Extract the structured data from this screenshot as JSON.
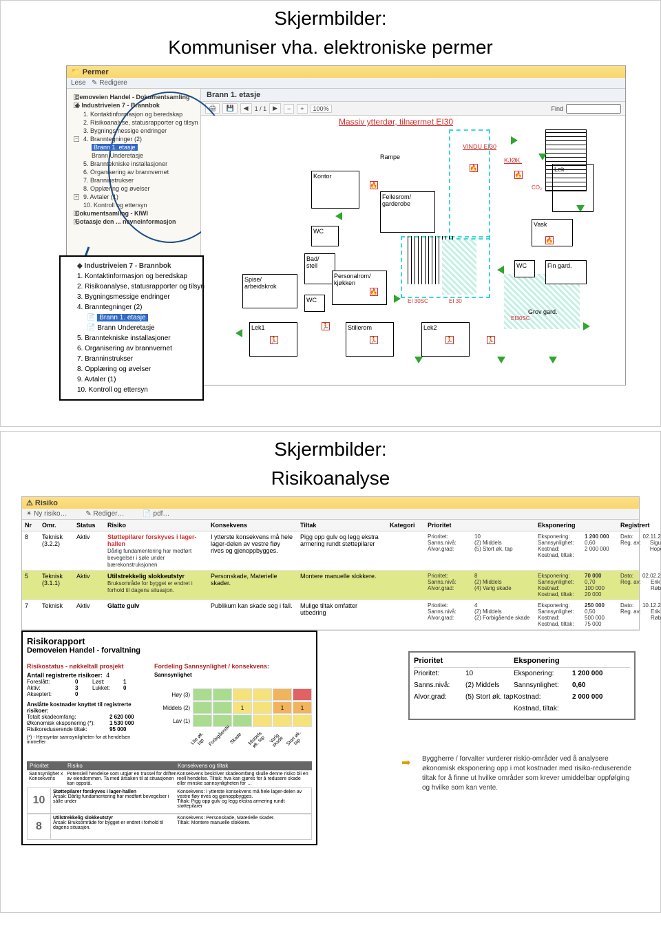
{
  "slide1": {
    "title_line1": "Skjermbilder:",
    "title_line2": "Kommuniser vha. elektroniske permer",
    "window_title": "Permer",
    "toolbar_items": [
      "Lese",
      "Redigere"
    ],
    "tree": {
      "root_a": "Demoveien Handel - Dokumentsamling",
      "root_b": "Industriveien 7 - Brannbok",
      "items": [
        "1. Kontaktinformasjon og beredskap",
        "2. Risikoanalyse, statusrapporter og tilsyn",
        "3. Bygningsmessige endringer",
        "4. Branntegninger (2)",
        "Brann 1. etasje",
        "Brann Underetasje",
        "5. Branntekniske installasjoner",
        "6. Organisering av brannvernet",
        "7. Branninstrukser",
        "8. Opplæring og øvelser",
        "9. Avtaler (1)",
        "10. Kontroll og ettersyn"
      ],
      "extra_line_a": "Dokumentsamling - KIWI",
      "extra_line_b": "Gotaasje den ... nevneinformasjon"
    },
    "doc_title": "Brann 1. etasje",
    "page_indicator": "1 / 1",
    "zoom": "100%",
    "find_label": "Find",
    "floorplan": {
      "banner": "Massiv ytterdør, tilnærmet EI30",
      "vindu": "VINDU  EI30",
      "rooms": {
        "rampe": "Rampe",
        "kontor": "Kontor",
        "wc1": "WC",
        "felles": "Fellesrom/\ngarderobe",
        "kjok": "KJØK.",
        "lek": "Lek",
        "vask": "Vask",
        "bad": "Bad/\nstell",
        "spise": "Spise/\narbeidskrok",
        "pers": "Personalrom/\nkjøkken",
        "wc2": "WC",
        "wc3": "WC",
        "fingard": "Fin gard.",
        "grov": "Grov gard.",
        "lek1": "Lek1",
        "stille": "Stillerom",
        "lek2": "Lek2",
        "ei30_a": "EI 30",
        "ei30_b": "EI 30SC",
        "ei30_c": "EI30SC",
        "co2": "CO₂"
      }
    }
  },
  "slide2": {
    "title_line1": "Skjermbilder:",
    "title_line2": "Risikoanalyse",
    "window_title": "Risiko",
    "toolbar": {
      "ny": "Ny risiko…",
      "rediger": "Rediger…",
      "pdf": "pdf…"
    },
    "columns": [
      "Nr",
      "Omr.",
      "Status",
      "Risiko",
      "Konsekvens",
      "Tiltak",
      "Kategori",
      "Prioritet",
      "Eksponering",
      "Registrert"
    ],
    "rows": [
      {
        "nr": "8",
        "omr": "Teknisk\n(3.2.2)",
        "status": "Aktiv",
        "risiko": "Støttepilarer forskyves i lager-hallen",
        "risiko_detail": "Dårlig fundamentering har medført bevegelser i søle under bærekonstruksjonen",
        "konsekvens": "I ytterste konsekvens må hele lager-delen av vestre fløy rives og gjenoppbygges.",
        "tiltak": "Pigg opp gulv og legg ekstra armering rundt støttepilarer",
        "prio": [
          [
            "Prioritet:",
            "10"
          ],
          [
            "Sanns.nivå:",
            "(2) Middels"
          ],
          [
            "Alvor.grad:",
            "(5) Stort øk. tap"
          ]
        ],
        "eksp": [
          [
            "Eksponering:",
            "1 200 000"
          ],
          [
            "Sannsynlighet:",
            "0,60"
          ],
          [
            "Kostnad:",
            "2 000 000"
          ],
          [
            "Kostnad, tiltak:",
            ""
          ]
        ],
        "reg": [
          [
            "Dato:",
            "02.11.2009"
          ],
          [
            "Reg. av:",
            "Sigurd Hopen"
          ]
        ]
      },
      {
        "nr": "5",
        "omr": "Teknisk\n(3.1.1)",
        "status": "Aktiv",
        "risiko": "Utilstrekkelig slokkeutstyr",
        "risiko_detail": "Bruksområde for bygget er endret i forhold til dagens situasjon.",
        "konsekvens": "Personskade, Materielle skader.",
        "tiltak": "Montere manuelle slokkere.",
        "prio": [
          [
            "Prioritet:",
            "8"
          ],
          [
            "Sanns.nivå:",
            "(2) Middels"
          ],
          [
            "Alvor.grad:",
            "(4) Varig skade"
          ]
        ],
        "eksp": [
          [
            "Eksponering:",
            "70 000"
          ],
          [
            "Sannsynlighet:",
            "0,70"
          ],
          [
            "Kostnad:",
            "100 000"
          ],
          [
            "Kostnad, tiltak:",
            "20 000"
          ]
        ],
        "reg": [
          [
            "Dato:",
            "02.02.2009"
          ],
          [
            "Reg. av:",
            "Erik Røbech"
          ]
        ]
      },
      {
        "nr": "7",
        "omr": "Teknisk",
        "status": "Aktiv",
        "risiko": "Glatte gulv",
        "risiko_detail": "",
        "konsekvens": "Publikum kan skade seg i fall.",
        "tiltak": "Mulige tiltak omfatter utbedring",
        "prio": [
          [
            "Prioritet:",
            "4"
          ],
          [
            "Sanns.nivå:",
            "(2) Middels"
          ],
          [
            "Alvor.grad:",
            "(2) Forbigående skade"
          ]
        ],
        "eksp": [
          [
            "Eksponering:",
            "250 000"
          ],
          [
            "Sannsynlighet:",
            "0,50"
          ],
          [
            "Kostnad:",
            "500 000"
          ],
          [
            "Kostnad, tiltak:",
            "75 000"
          ]
        ],
        "reg": [
          [
            "Dato:",
            "10.12.2009"
          ],
          [
            "Reg. av:",
            "Erik Røbech"
          ]
        ]
      }
    ],
    "report": {
      "title": "Risikorapport",
      "subtitle": "Demoveien Handel - forvaltning",
      "status_head": "Risikostatus - nøkkeltall prosjekt",
      "stats_label": "Antall registrerte risikoer:",
      "stats_total": "4",
      "stats": [
        [
          "Foreslått:",
          "0",
          "Løst:",
          "1"
        ],
        [
          "Aktiv:",
          "3",
          "Lukket:",
          "0"
        ],
        [
          "Akseptert:",
          "0",
          "",
          ""
        ]
      ],
      "cost_head": "Anslåtte kostnader knyttet til registrerte risikoer:",
      "costs": [
        [
          "Totalt skadeomfang:",
          "2 620 000"
        ],
        [
          "Økonomisk eksponering (*):",
          "1 530 000"
        ],
        [
          "Risikoreduserende tiltak:",
          "95 000"
        ]
      ],
      "footnote": "(*) - Hensyntar sannsynligheten for at hendelsen inntreffer",
      "matrix_head": "Fordeling Sannsynlighet / konsekvens:",
      "matrix_rows": [
        "Høy (3)",
        "Middels (2)",
        "Lav (1)"
      ],
      "matrix_cats": [
        "Konsekvens",
        "Lite øk. tap",
        "Forbigående",
        "Skade",
        "Middels øk. tap",
        "Varig skade",
        "Stort øk. tap"
      ],
      "matrix_values": {
        "r2c3": "1",
        "r2c5": "1",
        "r2c6": "1"
      },
      "table_head": [
        "Prioritet",
        "Risiko",
        "",
        "Konsekvens og tiltak"
      ],
      "table_col1_label": "Sannsynlighet x Konsekvens",
      "konsekvens_desc": "Konsekvens beskriver skadeomfang skulle denne risiko bli en reell hendelse. Tiltak: hva kan gjøres for å redusere skade eller minske sannsynligheten for …",
      "row10": {
        "nr": "10",
        "risk": "Potensiell hendelse som utgjør en trussel for driften av eiendommen. Ta med årsaken til at situasjonen kan oppstå.",
        "title": "Støttepilarer forskyves i lager-hallen",
        "cause": "Årsak: Dårlig fundamentering har medført bevegelser i sålle under",
        "kons": "Konsekvens: I ytterste konsekvens må hele lager-delen av vestre fløy rives og gjenoppbygges.",
        "tiltak": "Tiltak: Pigg opp gulv og legg ekstra armering rundt støttepilarer"
      },
      "row8": {
        "nr": "8",
        "title": "Utilstrekkelig slokkeutstyr",
        "cause": "Årsak: Bruksområde for bygget er endret i forhold til dagens situasjon.",
        "kons": "Konsekvens: Personskade, Materielle skader.",
        "tiltak": "Tiltak: Montere manuelle slokkere."
      }
    },
    "prio_inset": {
      "head_left": "Prioritet",
      "head_right": "Eksponering",
      "rows": [
        [
          "Prioritet:",
          "10",
          "Eksponering:",
          "1 200 000"
        ],
        [
          "Sanns.nivå:",
          "(2) Middels",
          "Sannsynlighet:",
          "0,60"
        ],
        [
          "Alvor.grad:",
          "(5) Stort øk. tap",
          "Kostnad:",
          "2 000 000"
        ],
        [
          "",
          "",
          "Kostnad, tiltak:",
          ""
        ]
      ]
    },
    "callout": "Byggherre / forvalter vurderer riskio-områder ved å analysere økonomisk eksponering opp i mot kostnader med risiko-reduserende tiltak for å finne ut hvilke områder som krever umiddelbar oppfølging og hvilke som kan vente."
  },
  "colors": {
    "brand_yellow": "#f9d66b",
    "highlight": "#dfe88a",
    "accent_blue": "#1f4e8a",
    "sel": "#3169c6",
    "risk_red": "#d62f2f",
    "green": "#2fa62f",
    "cyan": "#3cd6d6"
  }
}
